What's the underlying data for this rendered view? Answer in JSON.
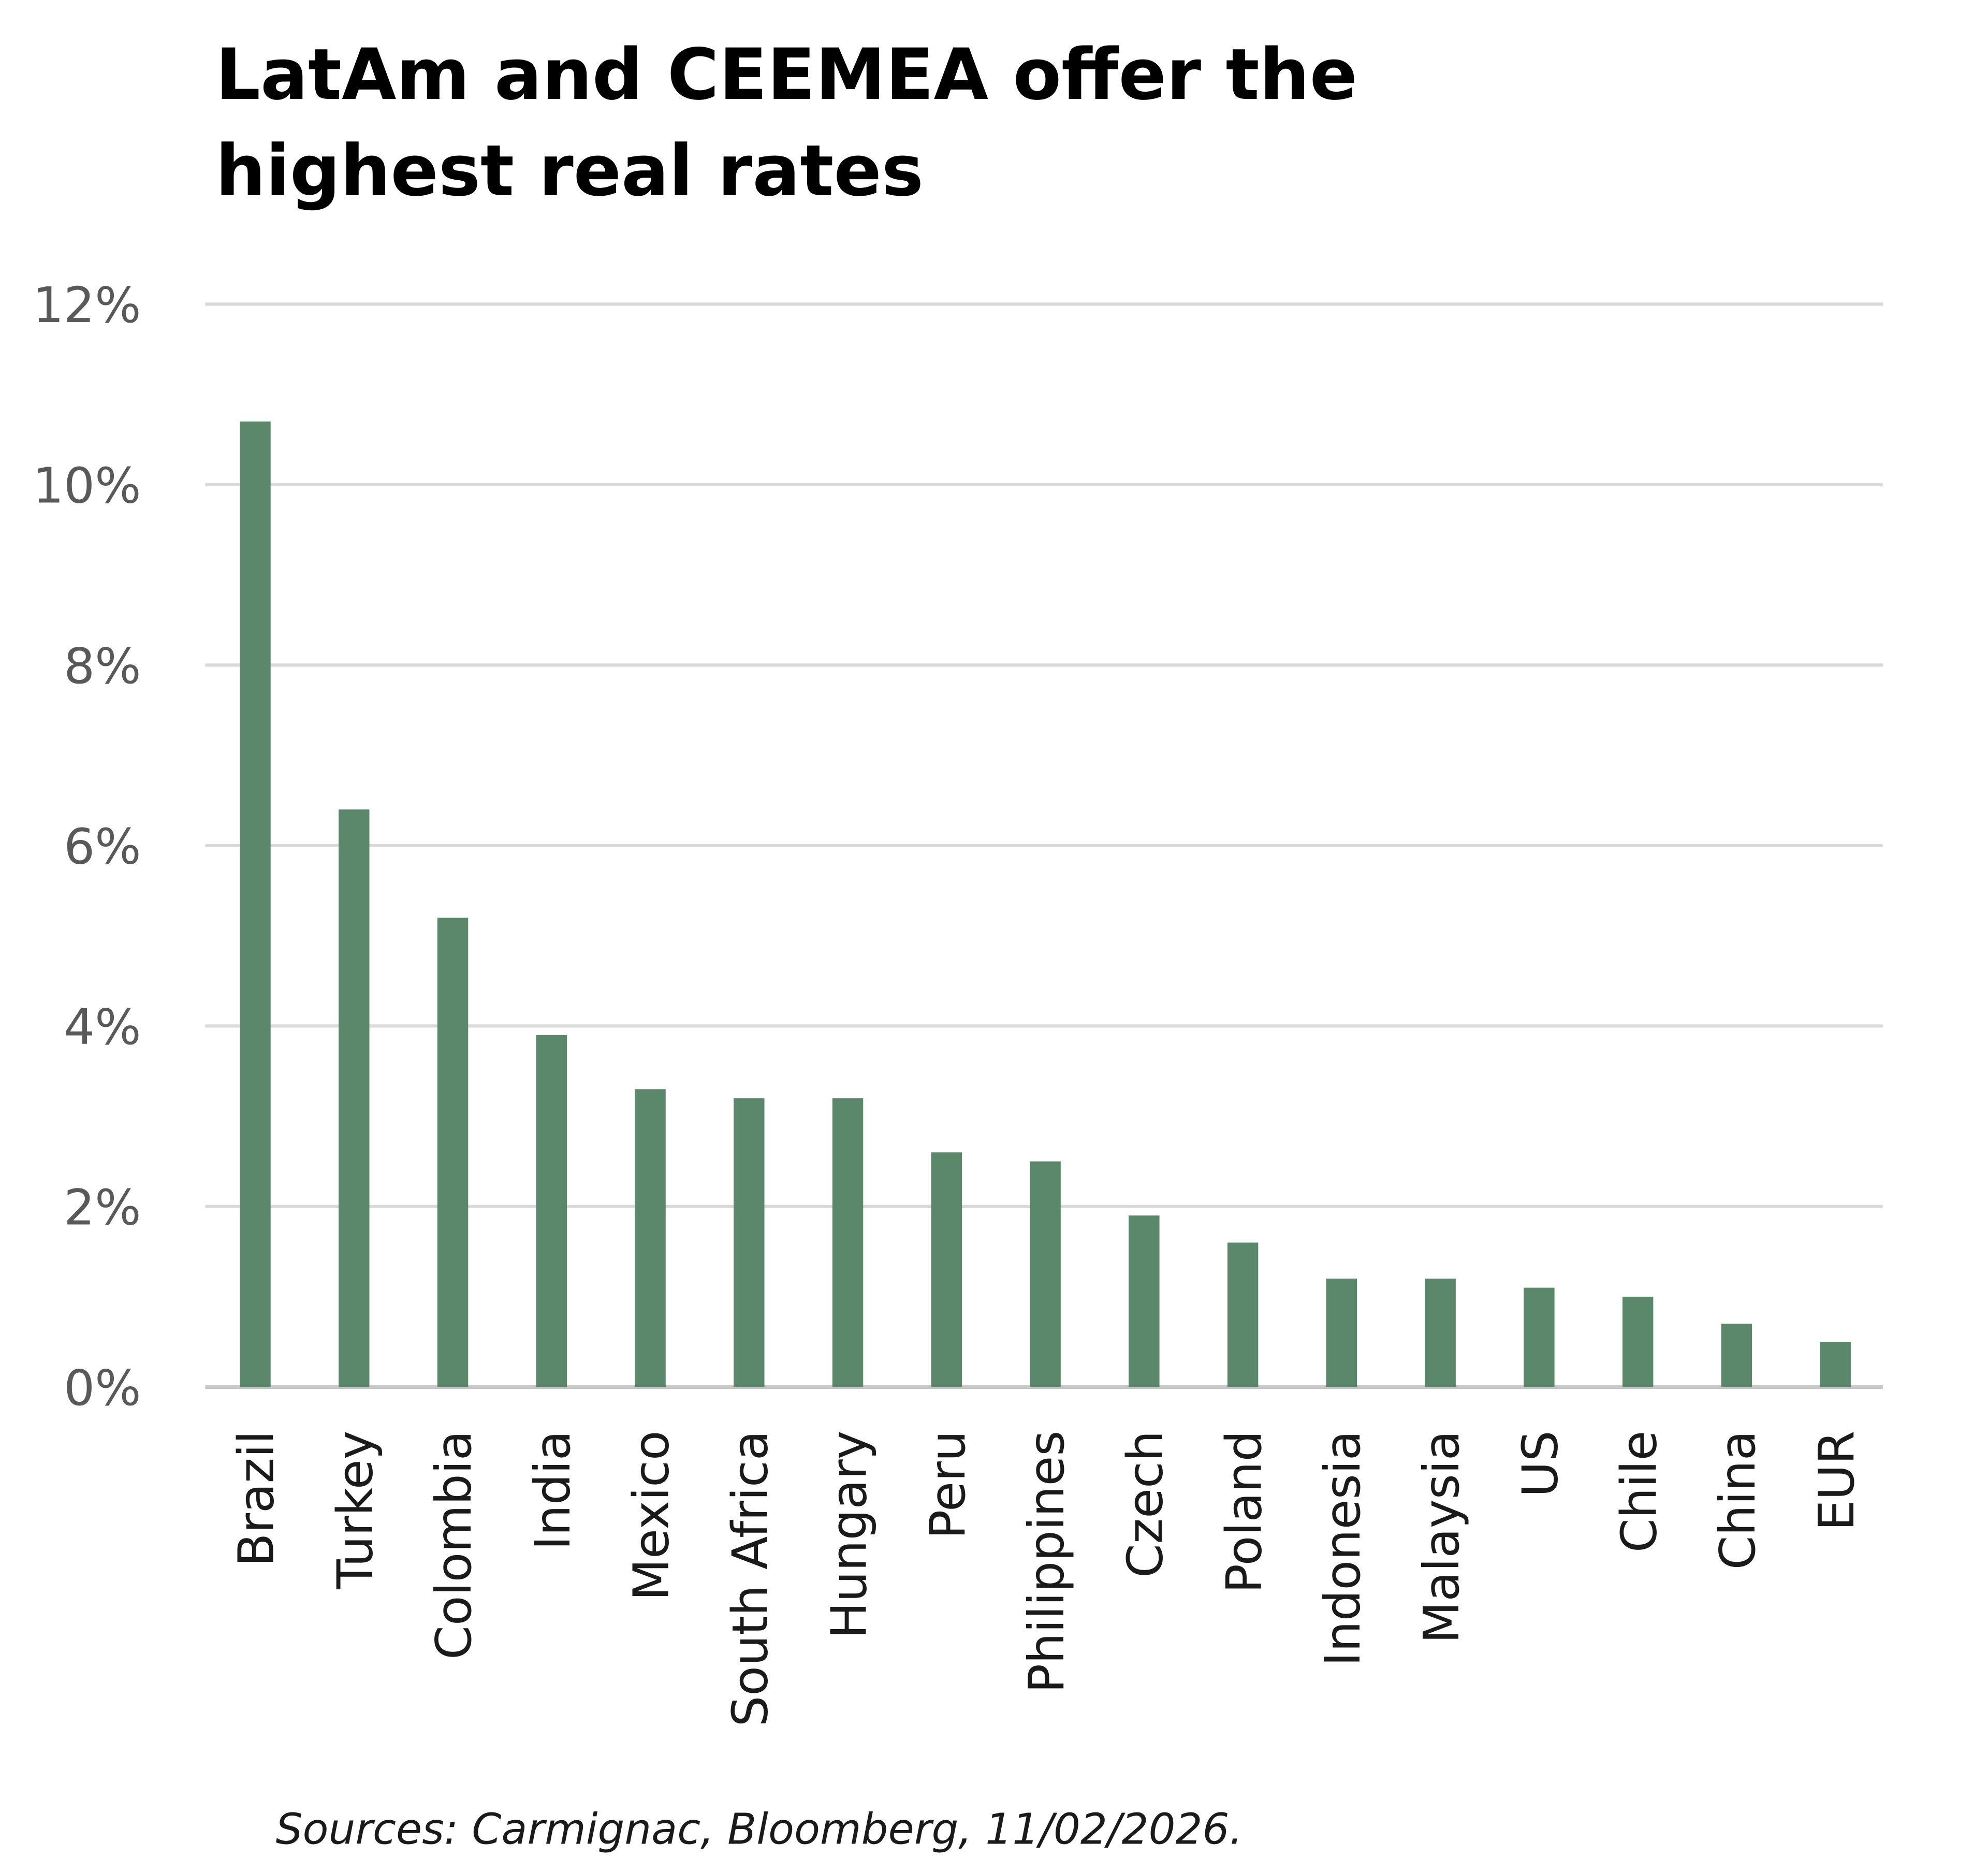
{
  "chart_data": {
    "type": "bar",
    "title_lines": [
      "LatAm and CEEMEA offer the",
      "highest real rates"
    ],
    "xlabel": "",
    "ylabel": "",
    "ylim": [
      0,
      12
    ],
    "yticks": [
      0,
      2,
      4,
      6,
      8,
      10,
      12
    ],
    "ytick_labels": [
      "0%",
      "2%",
      "4%",
      "6%",
      "8%",
      "10%",
      "12%"
    ],
    "grid": true,
    "categories": [
      "Brazil",
      "Turkey",
      "Colombia",
      "India",
      "Mexico",
      "South Africa",
      "Hungary",
      "Peru",
      "Philippines",
      "Czech",
      "Poland",
      "Indonesia",
      "Malaysia",
      "US",
      "Chile",
      "China",
      "EUR"
    ],
    "values": [
      10.7,
      6.4,
      5.2,
      3.9,
      3.3,
      3.2,
      3.2,
      2.6,
      2.5,
      1.9,
      1.6,
      1.2,
      1.2,
      1.1,
      1.0,
      0.7,
      0.5
    ],
    "unit": "%",
    "bar_color": "#5b876a",
    "source": "Sources: Carmignac, Bloomberg, 11/02/2026."
  }
}
